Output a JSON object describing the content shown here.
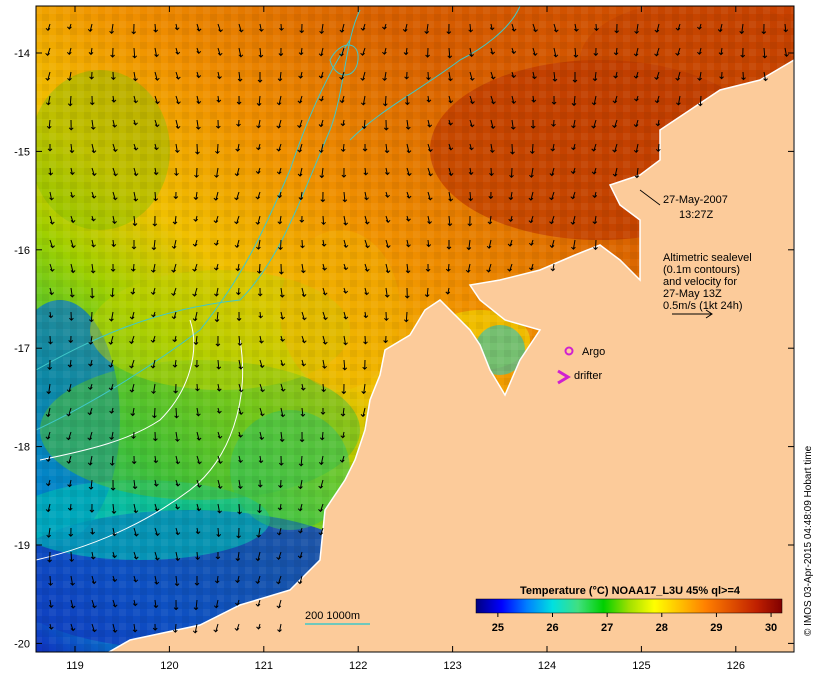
{
  "map": {
    "timestamp_line1": "27-May-2007",
    "timestamp_line2": "13:27Z",
    "altimetry_lines": [
      "Altimetric sealevel",
      "(0.1m contours)",
      "and velocity for",
      "27-May 13Z",
      "0.5m/s (1kt 24h)"
    ],
    "argo_label": "Argo",
    "drifter_label": "drifter",
    "depth_legend": "200  1000m",
    "credit": "© IMOS 03-Apr-2015 04:48:09 Hobart time",
    "colors": {
      "land": "#fccb9a",
      "argo_marker": "#d020d0",
      "contour_cyan": "#40c8c8"
    }
  },
  "axes": {
    "x_ticks": [
      "119",
      "120",
      "121",
      "122",
      "123",
      "124",
      "125",
      "126"
    ],
    "y_ticks": [
      "-14",
      "-15",
      "-16",
      "-17",
      "-18",
      "-19",
      "-20"
    ]
  },
  "colorbar": {
    "title": "Temperature (°C) NOAA17_L3U 45% ql>=4",
    "ticks": [
      "25",
      "26",
      "27",
      "28",
      "29",
      "30"
    ],
    "range": [
      24.6,
      30.2
    ],
    "stops": [
      "#000080",
      "#0000ff",
      "#0080ff",
      "#00e0e0",
      "#40e080",
      "#00d000",
      "#a0e000",
      "#ffff00",
      "#ffc000",
      "#ff8000",
      "#e05000",
      "#c02000",
      "#800000"
    ]
  }
}
